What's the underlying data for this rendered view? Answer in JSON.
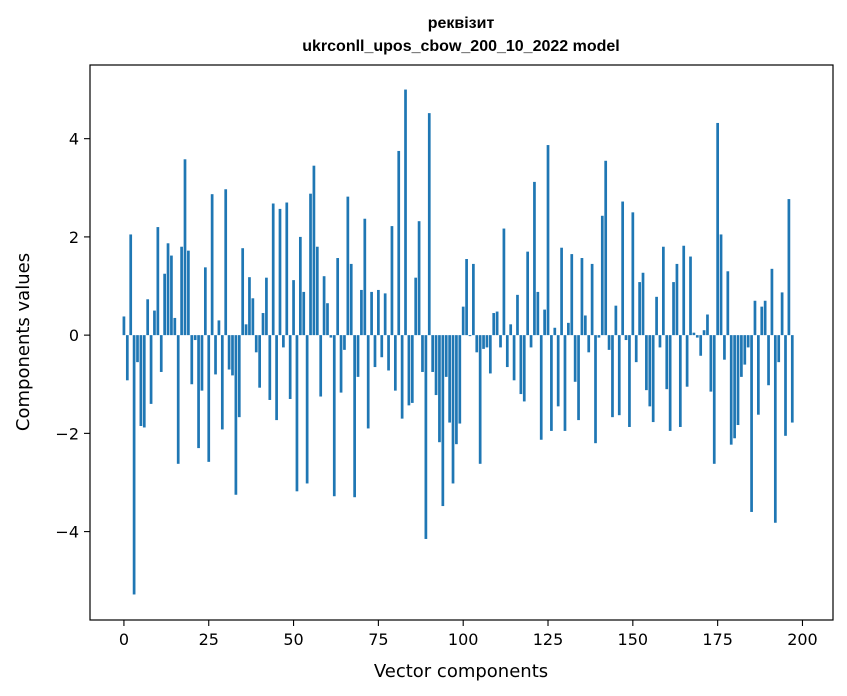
{
  "chart_data": {
    "type": "bar",
    "title_line1": "реквізит",
    "title_line2": "ukrconll_upos_cbow_200_10_2022 model",
    "xlabel": "Vector components",
    "ylabel": "Components values",
    "xlim": [
      -10,
      209
    ],
    "ylim": [
      -5.8,
      5.5
    ],
    "xticks": [
      0,
      25,
      50,
      75,
      100,
      125,
      150,
      175,
      200
    ],
    "xtick_labels": [
      "0",
      "25",
      "50",
      "75",
      "100",
      "125",
      "150",
      "175",
      "200"
    ],
    "yticks": [
      -4,
      -2,
      0,
      2,
      4
    ],
    "ytick_labels": [
      "−4",
      "−2",
      "0",
      "2",
      "4"
    ],
    "bar_color": "#1f77b4",
    "grid": false,
    "legend": "none",
    "values": [
      0.38,
      -0.92,
      2.05,
      -5.28,
      -0.55,
      -1.85,
      -1.88,
      0.73,
      -1.4,
      0.5,
      2.2,
      -0.75,
      1.25,
      1.87,
      1.62,
      0.35,
      -2.62,
      1.8,
      3.58,
      1.72,
      -1.0,
      -0.1,
      -2.3,
      -1.13,
      1.38,
      -2.58,
      2.87,
      -0.8,
      0.3,
      -1.92,
      2.97,
      -0.7,
      -0.82,
      -3.25,
      -1.67,
      1.77,
      0.22,
      1.18,
      0.75,
      -0.35,
      -1.07,
      0.45,
      1.17,
      -1.32,
      2.68,
      -1.73,
      2.57,
      -0.25,
      2.7,
      -1.3,
      1.12,
      -3.18,
      2.0,
      0.88,
      -3.02,
      2.88,
      3.45,
      1.8,
      -1.25,
      1.2,
      0.65,
      -0.05,
      -3.28,
      1.57,
      -1.17,
      -0.3,
      2.82,
      1.45,
      -3.3,
      -0.85,
      0.92,
      2.37,
      -1.9,
      0.88,
      -0.65,
      0.92,
      -0.45,
      0.85,
      -0.72,
      2.22,
      -1.13,
      3.75,
      -1.7,
      5.0,
      -1.43,
      -1.38,
      1.17,
      2.32,
      -0.75,
      -4.15,
      4.52,
      -0.75,
      -1.22,
      -2.18,
      -3.48,
      -0.85,
      -1.78,
      -3.02,
      -2.22,
      -1.8,
      0.58,
      1.55,
      -0.02,
      1.45,
      -0.35,
      -2.62,
      -0.28,
      -0.25,
      -0.78,
      0.45,
      0.48,
      -0.25,
      2.17,
      -0.65,
      0.22,
      -0.92,
      0.82,
      -1.2,
      -1.35,
      1.7,
      -0.25,
      3.12,
      0.88,
      -2.13,
      0.52,
      3.87,
      -1.95,
      0.15,
      -1.45,
      1.78,
      -1.95,
      0.25,
      1.65,
      -0.95,
      -1.73,
      1.57,
      0.4,
      -0.35,
      1.45,
      -2.2,
      -0.05,
      2.43,
      3.55,
      -0.3,
      -1.67,
      0.6,
      -1.63,
      2.72,
      -0.1,
      -1.87,
      2.5,
      -0.55,
      1.08,
      1.27,
      -1.12,
      -1.45,
      -1.77,
      0.78,
      -0.25,
      1.8,
      -1.1,
      -1.95,
      1.08,
      1.45,
      -1.87,
      1.82,
      -1.05,
      1.6,
      0.05,
      -0.05,
      -0.42,
      0.1,
      0.42,
      -1.15,
      -2.62,
      4.32,
      2.05,
      -0.5,
      1.3,
      -2.23,
      -2.1,
      -1.83,
      -0.85,
      -0.6,
      -0.25,
      -3.6,
      0.7,
      -1.62,
      0.58,
      0.7,
      -1.02,
      1.35,
      -3.82,
      -0.55,
      0.87,
      -2.05,
      2.77,
      -1.78
    ]
  }
}
